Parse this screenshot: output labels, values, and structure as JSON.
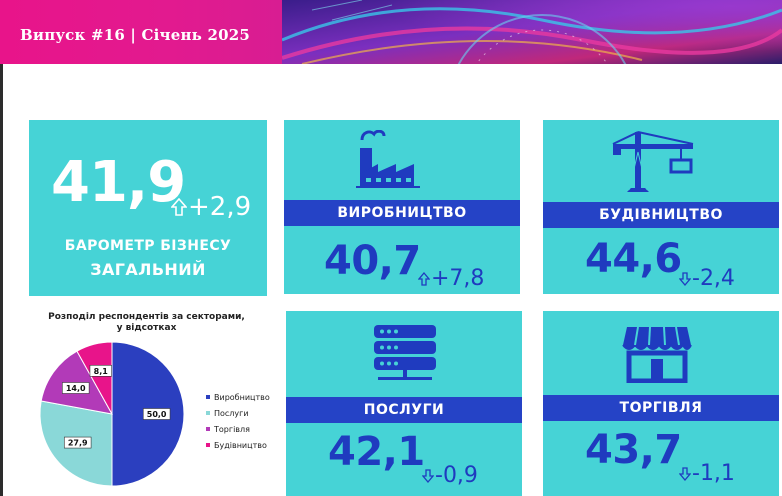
{
  "header": {
    "title": "Випуск #16 | Січень 2025"
  },
  "overall": {
    "value": "41,9",
    "delta": "+2,9",
    "delta_direction": "up",
    "label_line1": "БАРОМЕТР БІЗНЕСУ",
    "label_line2": "ЗАГАЛЬНИЙ"
  },
  "sectors": {
    "vyrobnytstvo": {
      "label": "ВИРОБНИЦТВО",
      "value": "40,7",
      "delta": "+7,8",
      "delta_direction": "up",
      "icon": "factory-icon"
    },
    "budivnytstvo": {
      "label": "БУДІВНИЦТВО",
      "value": "44,6",
      "delta": "-2,4",
      "delta_direction": "down",
      "icon": "crane-icon"
    },
    "posluhy": {
      "label": "ПОСЛУГИ",
      "value": "42,1",
      "delta": "-0,9",
      "delta_direction": "down",
      "icon": "server-icon"
    },
    "torhivlia": {
      "label": "ТОРГІВЛЯ",
      "value": "43,7",
      "delta": "-1,1",
      "delta_direction": "down",
      "icon": "storefront-icon"
    }
  },
  "colors": {
    "header_pink": "#e8148a",
    "tile_cyan": "#46d3d6",
    "band_blue": "#2543c6",
    "value_blue": "#1f3bbf"
  },
  "chart_data": {
    "type": "pie",
    "title_line1": "Розподіл респондентів за секторами,",
    "title_line2": "у відсотках",
    "categories": [
      "Виробництво",
      "Послуги",
      "Торгівля",
      "Будівництво"
    ],
    "values": [
      50.0,
      27.9,
      14.0,
      8.1
    ],
    "value_labels": [
      "50,0",
      "27,9",
      "14,0",
      "8,1"
    ],
    "colors": [
      "#2b3fbf",
      "#8ad8d8",
      "#b23ab8",
      "#e8148a"
    ],
    "legend_position": "right"
  }
}
